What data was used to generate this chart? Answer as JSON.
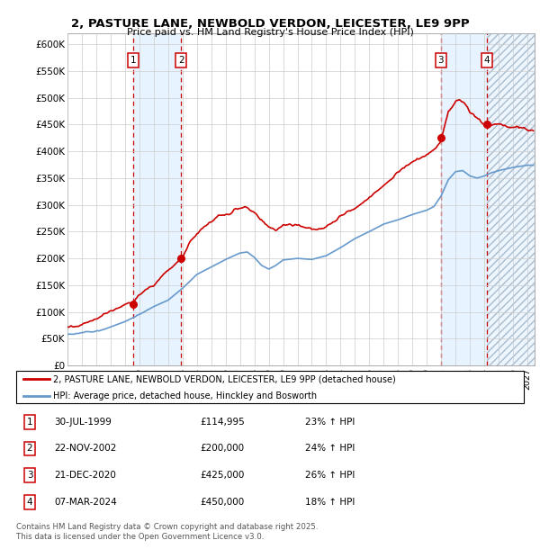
{
  "title": "2, PASTURE LANE, NEWBOLD VERDON, LEICESTER, LE9 9PP",
  "subtitle": "Price paid vs. HM Land Registry's House Price Index (HPI)",
  "ylim": [
    0,
    620000
  ],
  "xlim_start": 1995.0,
  "xlim_end": 2027.5,
  "yticks": [
    0,
    50000,
    100000,
    150000,
    200000,
    250000,
    300000,
    350000,
    400000,
    450000,
    500000,
    550000,
    600000
  ],
  "ytick_labels": [
    "£0",
    "£50K",
    "£100K",
    "£150K",
    "£200K",
    "£250K",
    "£300K",
    "£350K",
    "£400K",
    "£450K",
    "£500K",
    "£550K",
    "£600K"
  ],
  "transactions": [
    {
      "num": 1,
      "date": "30-JUL-1999",
      "year": 1999.58,
      "price": 114995,
      "pct": "23%"
    },
    {
      "num": 2,
      "date": "22-NOV-2002",
      "year": 2002.9,
      "price": 200000,
      "pct": "24%"
    },
    {
      "num": 3,
      "date": "21-DEC-2020",
      "year": 2020.97,
      "price": 425000,
      "pct": "26%"
    },
    {
      "num": 4,
      "date": "07-MAR-2024",
      "year": 2024.19,
      "price": 450000,
      "pct": "18%"
    }
  ],
  "legend_line1": "2, PASTURE LANE, NEWBOLD VERDON, LEICESTER, LE9 9PP (detached house)",
  "legend_line2": "HPI: Average price, detached house, Hinckley and Bosworth",
  "table_rows": [
    [
      1,
      "30-JUL-1999",
      "£114,995",
      "23% ↑ HPI"
    ],
    [
      2,
      "22-NOV-2002",
      "£200,000",
      "24% ↑ HPI"
    ],
    [
      3,
      "21-DEC-2020",
      "£425,000",
      "26% ↑ HPI"
    ],
    [
      4,
      "07-MAR-2024",
      "£450,000",
      "18% ↑ HPI"
    ]
  ],
  "footer1": "Contains HM Land Registry data © Crown copyright and database right 2025.",
  "footer2": "This data is licensed under the Open Government Licence v3.0.",
  "red_color": "#cc0000",
  "blue_color": "#6699cc",
  "shade_color": "#ddeeff",
  "hatch_color": "#aabbcc",
  "grid_color": "#cccccc"
}
